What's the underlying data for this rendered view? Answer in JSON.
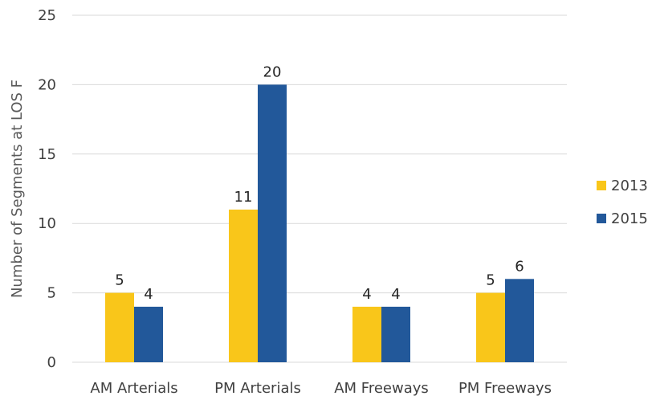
{
  "chart_data": {
    "type": "bar",
    "categories": [
      "AM Arterials",
      "PM Arterials",
      "AM Freeways",
      "PM Freeways"
    ],
    "series": [
      {
        "name": "2013",
        "values": [
          5,
          11,
          4,
          5
        ],
        "color": "#F9C61A"
      },
      {
        "name": "2015",
        "values": [
          4,
          20,
          4,
          6
        ],
        "color": "#22589A"
      }
    ],
    "ylabel": "Number of Segments at LOS F",
    "ylim": [
      0,
      25
    ],
    "yticks": [
      0,
      5,
      10,
      15,
      20,
      25
    ],
    "grid": true,
    "legend": "right"
  }
}
